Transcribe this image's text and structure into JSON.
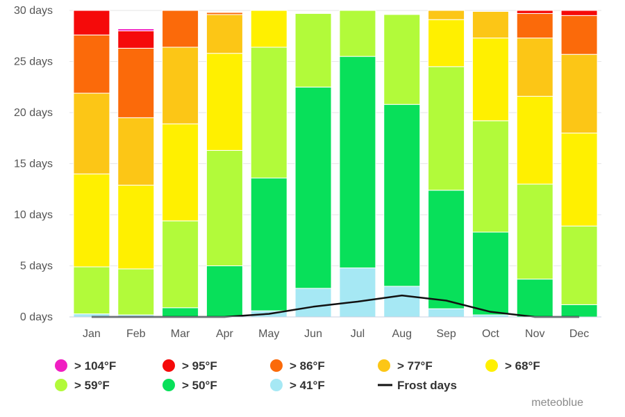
{
  "chart_data": {
    "type": "bar",
    "stacked": true,
    "categories": [
      "Jan",
      "Feb",
      "Mar",
      "Apr",
      "May",
      "Jun",
      "Jul",
      "Aug",
      "Sep",
      "Oct",
      "Nov",
      "Dec"
    ],
    "y_tick_labels": [
      "0 days",
      "5 days",
      "10 days",
      "15 days",
      "20 days",
      "25 days",
      "30 days"
    ],
    "y_ticks": [
      0,
      5,
      10,
      15,
      20,
      25,
      30
    ],
    "ylim": [
      0,
      30
    ],
    "grid": true,
    "legend_position": "bottom",
    "series": [
      {
        "name": "> 41°F",
        "color": "#a6e8f4",
        "values": [
          0.3,
          0.2,
          0,
          0,
          0.6,
          2.8,
          4.8,
          3.0,
          0.8,
          0.2,
          0,
          0
        ]
      },
      {
        "name": "> 50°F",
        "color": "#08e05a",
        "values": [
          0,
          0,
          0.9,
          5.0,
          13.0,
          19.7,
          20.7,
          17.8,
          11.6,
          8.1,
          3.7,
          1.2
        ]
      },
      {
        "name": "> 59°F",
        "color": "#b2fa3a",
        "values": [
          4.6,
          4.5,
          8.5,
          11.3,
          12.8,
          7.2,
          4.5,
          8.8,
          12.1,
          10.9,
          9.3,
          7.7
        ]
      },
      {
        "name": "> 68°F",
        "color": "#fff000",
        "values": [
          9.1,
          8.2,
          9.5,
          9.5,
          3.6,
          0,
          0,
          0,
          4.6,
          8.1,
          8.6,
          9.1
        ]
      },
      {
        "name": "> 77°F",
        "color": "#fcc616",
        "values": [
          7.9,
          6.6,
          7.5,
          3.8,
          0,
          0,
          0,
          0,
          0.9,
          2.6,
          5.7,
          7.7
        ]
      },
      {
        "name": "> 86°F",
        "color": "#fb6a0a",
        "values": [
          5.7,
          6.8,
          3.6,
          0.2,
          0,
          0,
          0,
          0,
          0,
          0,
          2.4,
          3.8
        ]
      },
      {
        "name": "> 95°F",
        "color": "#f50a0a",
        "values": [
          2.4,
          1.7,
          0,
          0,
          0,
          0,
          0,
          0,
          0,
          0,
          0.3,
          0.5
        ]
      },
      {
        "name": "> 104°F",
        "color": "#f01ec2",
        "values": [
          0,
          0.2,
          0,
          0,
          0,
          0,
          0,
          0,
          0,
          0,
          0,
          0
        ]
      }
    ],
    "line_series": {
      "name": "Frost days",
      "color": "#111111",
      "values": [
        0,
        0,
        0,
        0,
        0.3,
        1.0,
        1.5,
        2.1,
        1.6,
        0.5,
        0,
        0
      ]
    }
  },
  "legend_order": [
    "> 104°F",
    "> 95°F",
    "> 86°F",
    "> 77°F",
    "> 68°F",
    "> 59°F",
    "> 50°F",
    "> 41°F",
    "Frost days"
  ],
  "credit": "meteoblue"
}
